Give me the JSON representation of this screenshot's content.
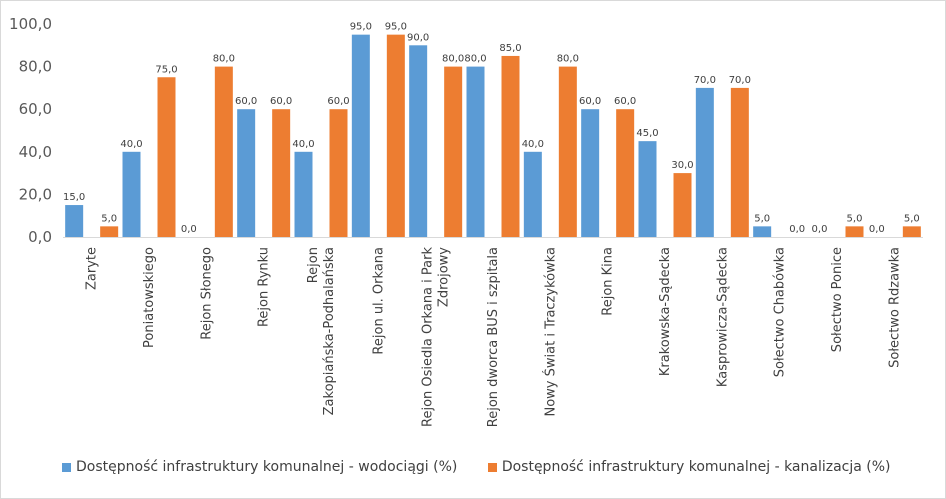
{
  "chart_data": {
    "type": "bar",
    "categories": [
      "Zaryte",
      "Poniatowskiego",
      "Rejon Słonego",
      "Rejon Rynku",
      "Rejon Zakopiańska-Podhalańska",
      "Rejon ul. Orkana",
      "Rejon Osiedla Orkana i Park Zdrojowy",
      "Rejon dworca BUS i szpitala",
      "Nowy Świat i Traczykówka",
      "Rejon Kina",
      "Krakowska-Sądecka",
      "Kasprowicza-Sądecka",
      "Sołectwo Chabówka",
      "Sołectwo Ponice",
      "Sołectwo Rdzawka"
    ],
    "series": [
      {
        "name": "Dostępność infrastruktury komunalnej - wodociągi (%)",
        "color": "#5b9bd5",
        "values": [
          15,
          40,
          0,
          60,
          40,
          95,
          90,
          80,
          40,
          60,
          45,
          70,
          5,
          0,
          0
        ]
      },
      {
        "name": "Dostępność infrastruktury komunalnej - kanalizacja (%)",
        "color": "#ed7d31",
        "values": [
          5,
          75,
          80,
          60,
          60,
          95,
          80,
          85,
          80,
          60,
          30,
          70,
          0,
          5,
          5
        ]
      }
    ],
    "data_labels": [
      [
        "15,0",
        "40,0",
        "0,0",
        "60,0",
        "40,0",
        "95,0",
        "90,0",
        "80,0",
        "40,0",
        "60,0",
        "45,0",
        "70,0",
        "5,0",
        "0,0",
        "0,0"
      ],
      [
        "5,0",
        "75,0",
        "80,0",
        "60,0",
        "60,0",
        "95,0",
        "80,0",
        "85,0",
        "80,0",
        "60,0",
        "30,0",
        "70,0",
        "0,0",
        "5,0",
        "5,0"
      ]
    ],
    "yticks": [
      "0,0",
      "20,0",
      "40,0",
      "60,0",
      "80,0",
      "100,0"
    ],
    "ylim": [
      0,
      100
    ],
    "grid": false,
    "legend_position": "bottom",
    "title": "",
    "xlabel": "",
    "ylabel": ""
  },
  "legend": {
    "wodociagi": "Dostępność infrastruktury komunalnej - wodociągi (%)",
    "kanalizacja": "Dostępność infrastruktury komunalnej - kanalizacja (%)"
  }
}
